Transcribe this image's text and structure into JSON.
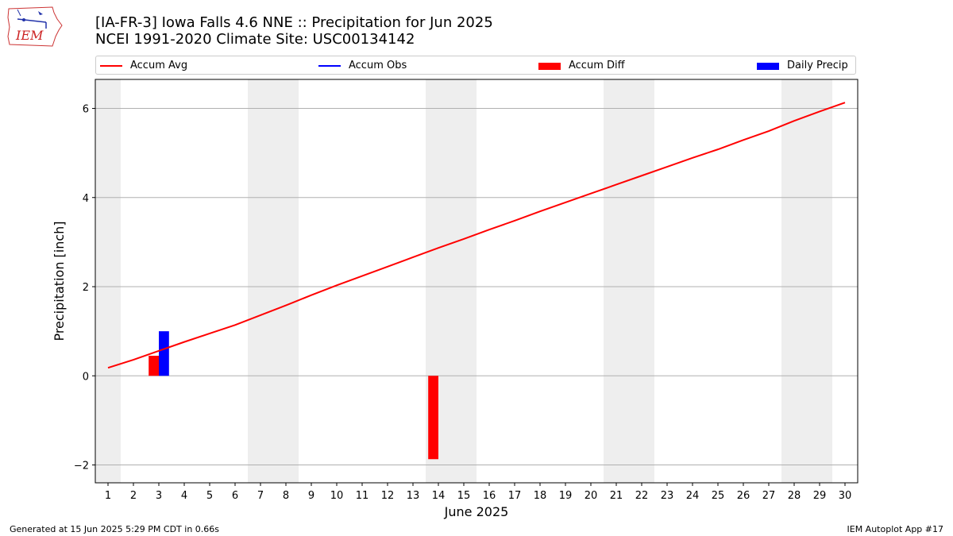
{
  "header": {
    "title_line1": "[IA-FR-3] Iowa Falls 4.6 NNE :: Precipitation for Jun 2025",
    "title_line2": "NCEI 1991-2020 Climate Site: USC00134142",
    "logo_text": "IEM"
  },
  "legend": [
    {
      "label": "Accum Avg",
      "kind": "line",
      "color": "#ff0000"
    },
    {
      "label": "Accum Obs",
      "kind": "line",
      "color": "#0000ff"
    },
    {
      "label": "Accum Diff",
      "kind": "patch",
      "color": "#ff0000"
    },
    {
      "label": "Daily Precip",
      "kind": "patch",
      "color": "#0000ff"
    }
  ],
  "footer": {
    "generated": "Generated at 15 Jun 2025 5:29 PM CDT in 0.66s",
    "app": "IEM Autoplot App #17"
  },
  "chart_data": {
    "type": "line",
    "title": "[IA-FR-3] Iowa Falls 4.6 NNE :: Precipitation for Jun 2025",
    "xlabel": "June 2025",
    "ylabel": "Precipitation [inch]",
    "x": [
      1,
      2,
      3,
      4,
      5,
      6,
      7,
      8,
      9,
      10,
      11,
      12,
      13,
      14,
      15,
      16,
      17,
      18,
      19,
      20,
      21,
      22,
      23,
      24,
      25,
      26,
      27,
      28,
      29,
      30
    ],
    "xlim": [
      0.5,
      30.5
    ],
    "ylim": [
      -2.4,
      6.65
    ],
    "yticks": [
      -2,
      0,
      2,
      4,
      6
    ],
    "ytick_labels": [
      "−2",
      "0",
      "2",
      "4",
      "6"
    ],
    "grid": "horizontal",
    "weekend_shading": [
      [
        0.5,
        1.5
      ],
      [
        6.5,
        8.5
      ],
      [
        13.5,
        15.5
      ],
      [
        20.5,
        22.5
      ],
      [
        27.5,
        29.5
      ]
    ],
    "series": [
      {
        "name": "Accum Avg",
        "type": "line",
        "color": "#ff0000",
        "x": [
          1,
          2,
          3,
          4,
          5,
          6,
          7,
          8,
          9,
          10,
          11,
          12,
          13,
          14,
          15,
          16,
          17,
          18,
          19,
          20,
          21,
          22,
          23,
          24,
          25,
          26,
          27,
          28,
          29,
          30
        ],
        "values": [
          0.18,
          0.36,
          0.56,
          0.76,
          0.95,
          1.14,
          1.36,
          1.58,
          1.81,
          2.03,
          2.24,
          2.45,
          2.66,
          2.87,
          3.07,
          3.28,
          3.48,
          3.69,
          3.89,
          4.09,
          4.29,
          4.49,
          4.69,
          4.89,
          5.08,
          5.29,
          5.49,
          5.72,
          5.93,
          6.13
        ]
      },
      {
        "name": "Accum Diff",
        "type": "bar",
        "color": "#ff0000",
        "offset": -0.2,
        "x": [
          3,
          14
        ],
        "values": [
          0.45,
          -1.87
        ]
      },
      {
        "name": "Daily Precip",
        "type": "bar",
        "color": "#0000ff",
        "offset": 0.2,
        "x": [
          3
        ],
        "values": [
          1.0
        ]
      }
    ]
  }
}
